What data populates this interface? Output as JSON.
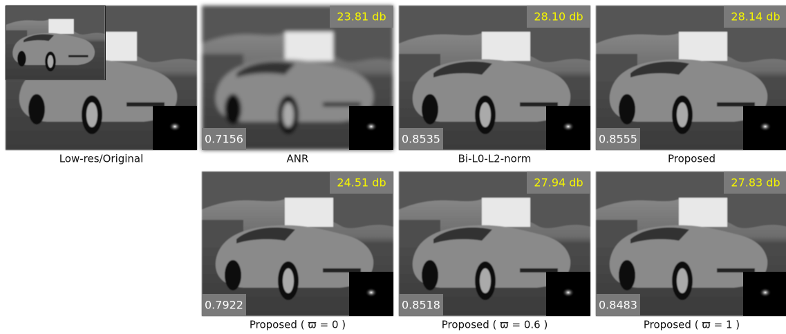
{
  "panels": [
    {
      "caption": "Low-res/Original"
    },
    {
      "caption": "ANR",
      "psnr": "23.81 db",
      "ssim": "0.7156"
    },
    {
      "caption": "Bi-L0-L2-norm",
      "psnr": "28.10 db",
      "ssim": "0.8535"
    },
    {
      "caption": "Proposed",
      "psnr": "28.14 db",
      "ssim": "0.8555"
    },
    {
      "caption": "Proposed ( ϖ = 0 )",
      "psnr": "24.51 db",
      "ssim": "0.7922"
    },
    {
      "caption": "Proposed ( ϖ = 0.6 )",
      "psnr": "27.94 db",
      "ssim": "0.8518"
    },
    {
      "caption": "Proposed ( ϖ = 1 )",
      "psnr": "27.83 db",
      "ssim": "0.8483"
    }
  ]
}
